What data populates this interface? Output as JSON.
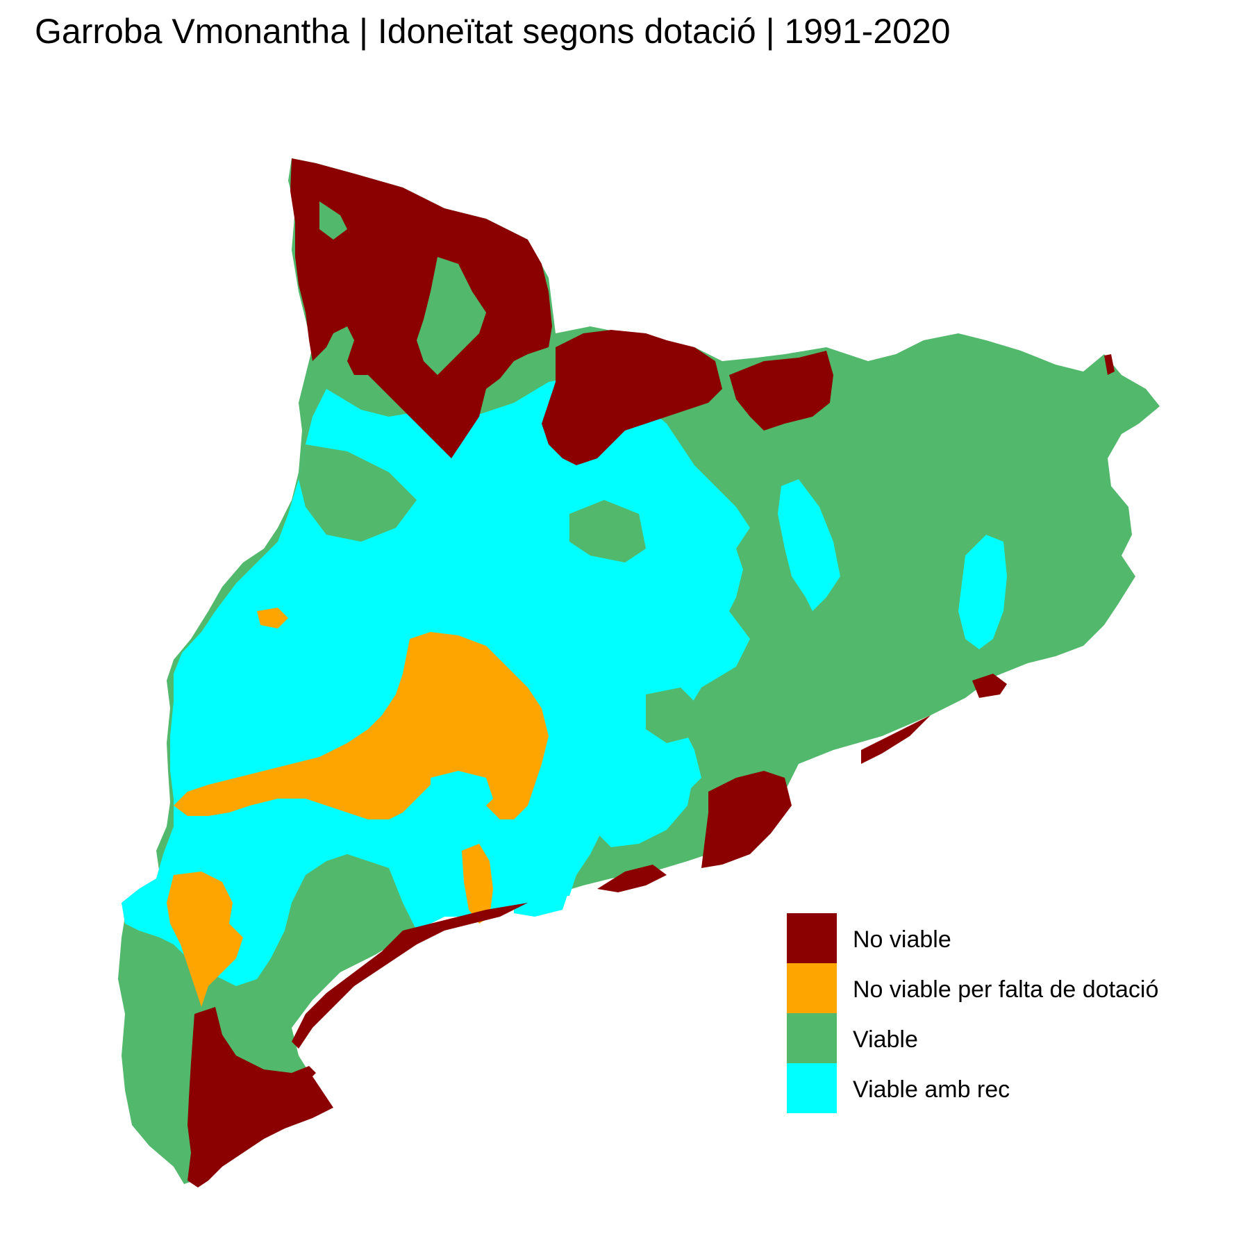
{
  "title": "Garroba Vmonantha | Idoneïtat segons dotació | 1991-2020",
  "colors": {
    "no_viable": "#8b0000",
    "no_viable_dotacio": "#ffa500",
    "viable": "#52b86c",
    "viable_rec": "#00ffff"
  },
  "legend": [
    {
      "label": "No viable",
      "color": "#8b0000"
    },
    {
      "label": "No viable per falta de dotació",
      "color": "#ffa500"
    },
    {
      "label": "Viable",
      "color": "#52b86c"
    },
    {
      "label": "Viable amb rec",
      "color": "#00ffff"
    }
  ]
}
